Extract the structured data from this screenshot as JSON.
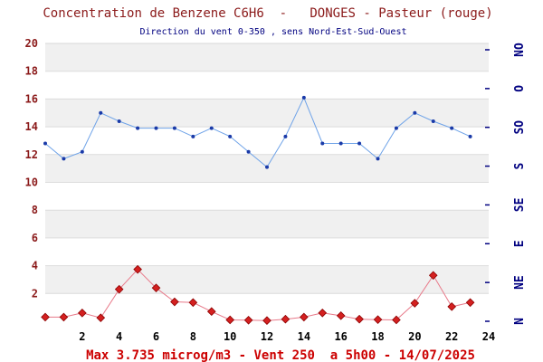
{
  "chart_data": {
    "type": "line",
    "title": "Concentration de Benzene C6H6  -   DONGES - Pasteur (rouge)",
    "subtitle": "Direction du vent 0-350 , sens Nord-Est-Sud-Ouest",
    "footer": "Max 3.735 microg/m3 - Vent 250  a 5h00 - 14/07/2025",
    "xlim": [
      0,
      24
    ],
    "ylim": [
      0,
      20
    ],
    "x_ticks": [
      "2",
      "4",
      "6",
      "8",
      "10",
      "12",
      "14",
      "16",
      "18",
      "20",
      "22",
      "24"
    ],
    "y_ticks": [
      "2",
      "4",
      "6",
      "8",
      "10",
      "12",
      "14",
      "16",
      "18",
      "20"
    ],
    "direction_ticks": [
      "N",
      "NE",
      "E",
      "SE",
      "S",
      "SO",
      "O",
      "NO"
    ],
    "grid": true,
    "series": [
      {
        "color": "#cc0000",
        "x": [
          0,
          1,
          2,
          3,
          4,
          5,
          6,
          7,
          8,
          9,
          10,
          11,
          12,
          13,
          14,
          15,
          16,
          17,
          18,
          19,
          20,
          21,
          22,
          23
        ],
        "values": [
          0.3,
          0.3,
          0.6,
          0.25,
          2.3,
          3.735,
          2.4,
          1.4,
          1.35,
          0.7,
          0.1,
          0.08,
          0.05,
          0.15,
          0.3,
          0.6,
          0.4,
          0.15,
          0.12,
          0.1,
          1.3,
          3.3,
          1.05,
          1.35
        ]
      },
      {
        "color": "#6699dd",
        "x": [
          0,
          1,
          2,
          3,
          4,
          5,
          6,
          7,
          8,
          9,
          10,
          11,
          12,
          13,
          14,
          15,
          16,
          17,
          18,
          19,
          20,
          21,
          22,
          23
        ],
        "values": [
          12.8,
          11.7,
          12.2,
          15.0,
          14.4,
          13.9,
          13.9,
          13.9,
          13.3,
          13.9,
          13.3,
          12.2,
          11.1,
          13.3,
          16.1,
          12.8,
          12.8,
          12.8,
          11.7,
          13.9,
          15.0,
          14.4,
          13.9,
          13.3
        ]
      }
    ]
  }
}
